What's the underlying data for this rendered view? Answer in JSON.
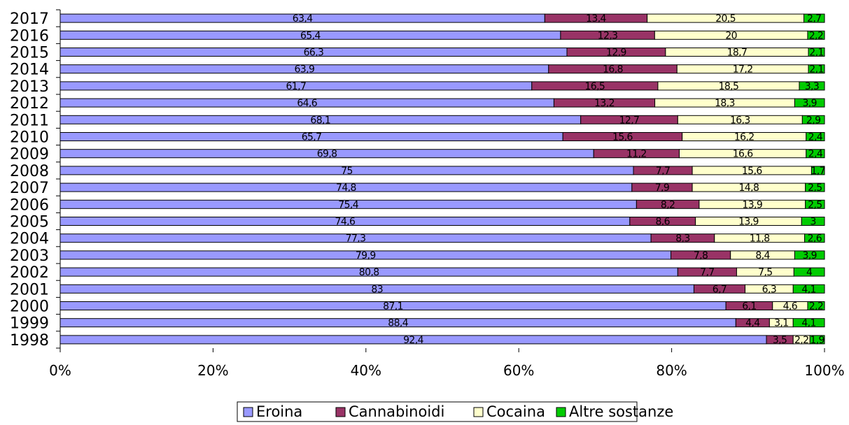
{
  "chart_data": {
    "type": "bar",
    "orientation": "horizontal",
    "stacking": "percent",
    "categories": [
      "2017",
      "2016",
      "2015",
      "2014",
      "2013",
      "2012",
      "2011",
      "2010",
      "2009",
      "2008",
      "2007",
      "2006",
      "2005",
      "2004",
      "2003",
      "2002",
      "2001",
      "2000",
      "1999",
      "1998"
    ],
    "series": [
      {
        "name": "Eroina",
        "color": "#9999ff",
        "values": [
          63.4,
          65.4,
          66.3,
          63.9,
          61.7,
          64.6,
          68.1,
          65.7,
          69.8,
          75,
          74.8,
          75.4,
          74.6,
          77.3,
          79.9,
          80.8,
          83,
          87.1,
          88.4,
          92.4
        ],
        "labels": [
          "63,4",
          "65,4",
          "66,3",
          "63,9",
          "61,7",
          "64,6",
          "68,1",
          "65,7",
          "69,8",
          "75",
          "74,8",
          "75,4",
          "74,6",
          "77,3",
          "79,9",
          "80,8",
          "83",
          "87,1",
          "88,4",
          "92,4"
        ]
      },
      {
        "name": "Cannabinoidi",
        "color": "#993366",
        "values": [
          13.4,
          12.3,
          12.9,
          16.8,
          16.5,
          13.2,
          12.7,
          15.6,
          11.2,
          7.7,
          7.9,
          8.2,
          8.6,
          8.3,
          7.8,
          7.7,
          6.7,
          6.1,
          4.4,
          3.5
        ],
        "labels": [
          "13,4",
          "12,3",
          "12,9",
          "16,8",
          "16,5",
          "13,2",
          "12,7",
          "15,6",
          "11,2",
          "7,7",
          "7,9",
          "8,2",
          "8,6",
          "8,3",
          "7,8",
          "7,7",
          "6,7",
          "6,1",
          "4,4",
          "3,5"
        ]
      },
      {
        "name": "Cocaina",
        "color": "#ffffcc",
        "values": [
          20.5,
          20,
          18.7,
          17.2,
          18.5,
          18.3,
          16.3,
          16.2,
          16.6,
          15.6,
          14.8,
          13.9,
          13.9,
          11.8,
          8.4,
          7.5,
          6.3,
          4.6,
          3.1,
          2.2
        ],
        "labels": [
          "20,5",
          "20",
          "18,7",
          "17,2",
          "18,5",
          "18,3",
          "16,3",
          "16,2",
          "16,6",
          "15,6",
          "14,8",
          "13,9",
          "13,9",
          "11,8",
          "8,4",
          "7,5",
          "6,3",
          "4,6",
          "3,1",
          "2,2"
        ]
      },
      {
        "name": "Altre sostanze",
        "color": "#00cc00",
        "values": [
          2.7,
          2.2,
          2.1,
          2.1,
          3.3,
          3.9,
          2.9,
          2.4,
          2.4,
          1.7,
          2.5,
          2.5,
          3,
          2.6,
          3.9,
          4,
          4.1,
          2.2,
          4.1,
          1.9
        ],
        "labels": [
          "2,7",
          "2,2",
          "2,1",
          "2,1",
          "3,3",
          "3,9",
          "2,9",
          "2,4",
          "2,4",
          "1,7",
          "2,5",
          "2,5",
          "3",
          "2,6",
          "3,9",
          "4",
          "4,1",
          "2,2",
          "4,1",
          "1,9"
        ]
      }
    ],
    "x_ticks": [
      "0%",
      "20%",
      "40%",
      "60%",
      "80%",
      "100%"
    ],
    "xlim": [
      0,
      100
    ],
    "grid": false,
    "legend_position": "bottom"
  }
}
